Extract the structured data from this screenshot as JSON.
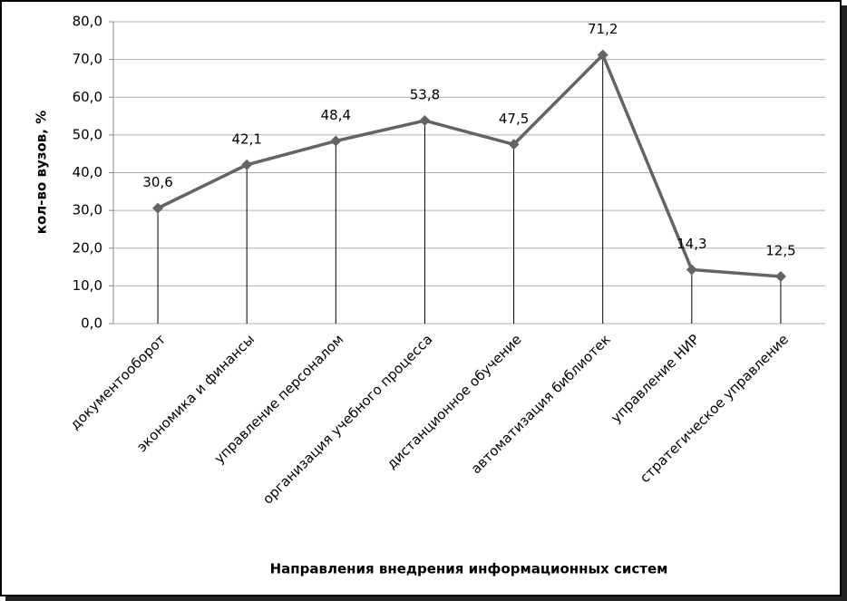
{
  "chart_data": {
    "type": "line",
    "x_axis_label": "Направления внедрения информационных систем",
    "y_axis_label": "кол-во вузов, %",
    "categories": [
      "документооборот",
      "экономика и финансы",
      "управление персоналом",
      "организация учебного процесса",
      "дистанционное обучение",
      "автоматизация библиотек",
      "управление НИР",
      "стратегическое управление"
    ],
    "values": [
      30.6,
      42.1,
      48.4,
      53.8,
      47.5,
      71.2,
      14.3,
      12.5
    ],
    "value_labels": [
      "30,6",
      "42,1",
      "48,4",
      "53,8",
      "47,5",
      "71,2",
      "14,3",
      "12,5"
    ],
    "color": "#646464",
    "ylim": [
      0,
      80
    ],
    "yticks": [
      {
        "value": 0,
        "label": "0,0"
      },
      {
        "value": 10,
        "label": "10,0"
      },
      {
        "value": 20,
        "label": "20,0"
      },
      {
        "value": 30,
        "label": "30,0"
      },
      {
        "value": 40,
        "label": "40,0"
      },
      {
        "value": 50,
        "label": "50,0"
      },
      {
        "value": 60,
        "label": "60,0"
      },
      {
        "value": 70,
        "label": "70,0"
      },
      {
        "value": 80,
        "label": "80,0"
      }
    ],
    "grid": true,
    "drop_lines": true
  }
}
